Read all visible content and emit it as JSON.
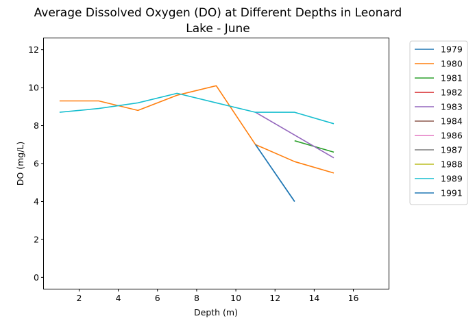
{
  "chart_data": {
    "type": "line",
    "title_line1": "Average Dissolved Oxygen (DO) at Different Depths in Leonard",
    "title_line2": "Lake - June",
    "xlabel": "Depth (m)",
    "ylabel": "DO (mg/L)",
    "xlim": [
      0.2,
      17.8
    ],
    "ylim": [
      -0.6,
      12.6
    ],
    "xticks": [
      2,
      4,
      6,
      8,
      10,
      12,
      14,
      16
    ],
    "yticks": [
      0,
      2,
      4,
      6,
      8,
      10,
      12
    ],
    "grid": false,
    "legend_position": "outside-right",
    "series": [
      {
        "name": "1979",
        "color": "#1f77b4",
        "points": [
          [
            11,
            7.0
          ],
          [
            13,
            4.0
          ]
        ]
      },
      {
        "name": "1980",
        "color": "#ff7f0e",
        "points": [
          [
            1,
            9.3
          ],
          [
            3,
            9.3
          ],
          [
            5,
            8.8
          ],
          [
            7,
            9.6
          ],
          [
            9,
            10.1
          ],
          [
            11,
            7.0
          ],
          [
            13,
            6.1
          ],
          [
            15,
            5.5
          ]
        ]
      },
      {
        "name": "1981",
        "color": "#2ca02c",
        "points": [
          [
            13,
            7.2
          ],
          [
            15,
            6.6
          ]
        ]
      },
      {
        "name": "1982",
        "color": "#d62728",
        "points": []
      },
      {
        "name": "1983",
        "color": "#9467bd",
        "points": [
          [
            11,
            8.7
          ],
          [
            15,
            6.3
          ]
        ]
      },
      {
        "name": "1984",
        "color": "#8c564b",
        "points": []
      },
      {
        "name": "1986",
        "color": "#e377c2",
        "points": []
      },
      {
        "name": "1987",
        "color": "#7f7f7f",
        "points": []
      },
      {
        "name": "1988",
        "color": "#bcbd22",
        "points": []
      },
      {
        "name": "1989",
        "color": "#17becf",
        "points": [
          [
            1,
            8.7
          ],
          [
            3,
            8.9
          ],
          [
            5,
            9.2
          ],
          [
            7,
            9.7
          ],
          [
            9,
            9.2
          ],
          [
            11,
            8.7
          ],
          [
            13,
            8.7
          ],
          [
            15,
            8.1
          ]
        ]
      },
      {
        "name": "1991",
        "color": "#1f77b4",
        "points": [
          [
            11,
            7.0
          ],
          [
            13,
            4.0
          ]
        ]
      }
    ]
  }
}
